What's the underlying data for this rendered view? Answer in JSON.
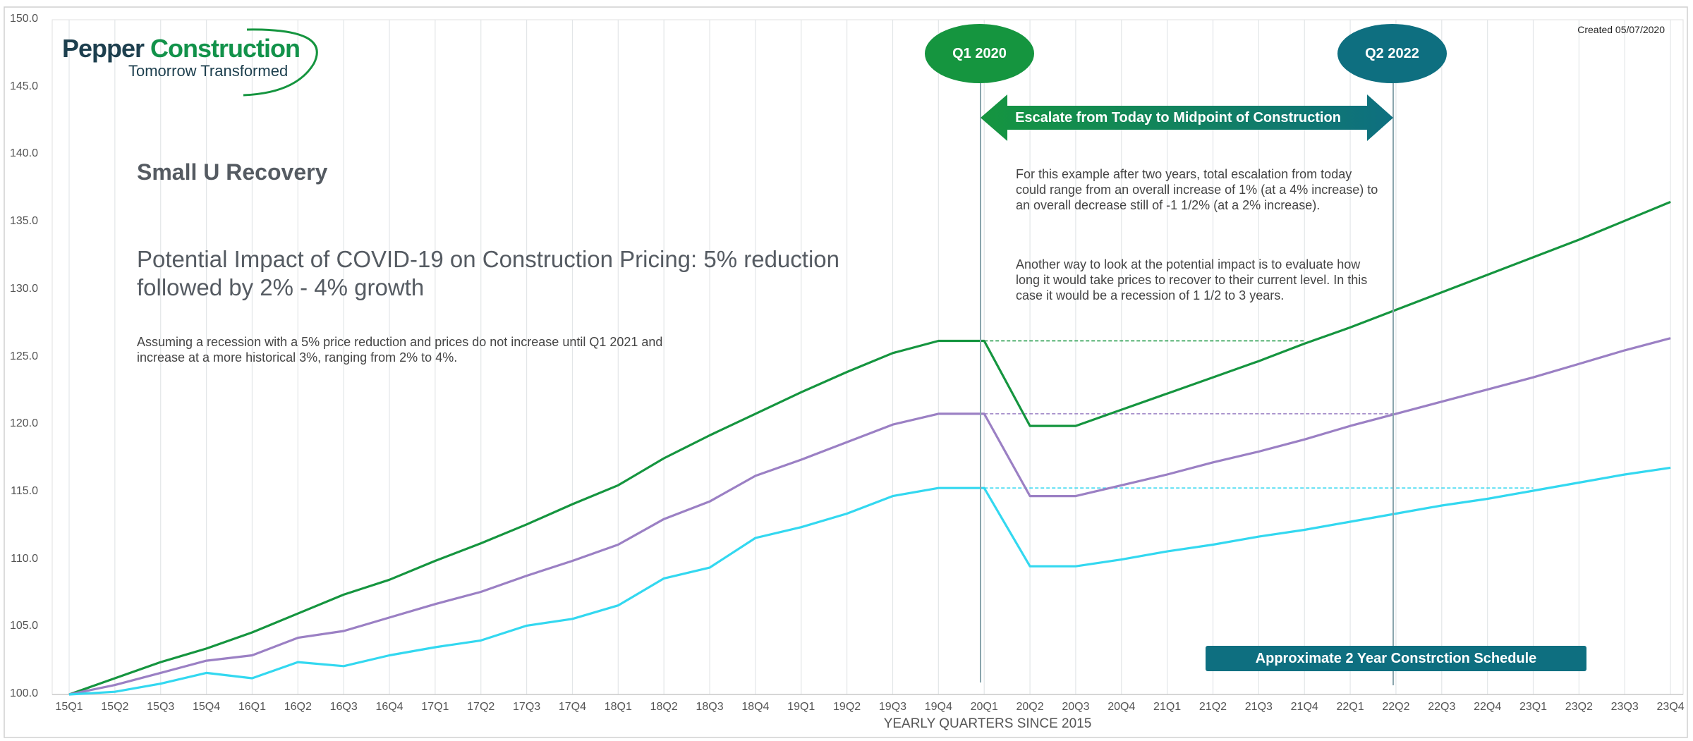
{
  "logo": {
    "name_part1": "Pepper ",
    "name_part2": "Construction",
    "tagline": "Tomorrow Transformed"
  },
  "created": "Created 05/07/2020",
  "title": "Small U Recovery",
  "subtitle": "Potential Impact of COVID-19 on Construction Pricing: 5% reduction followed by 2% - 4% growth",
  "description": "Assuming a recession with a 5% price reduction and prices do not increase until Q1 2021 and increase at a more historical 3%, ranging from 2% to 4%.",
  "note1": "For this example after two years, total escalation from today could range from an overall increase of 1% (at a 4% increase) to an overall decrease still of -1 1/2% (at a 2% increase).",
  "note2": "Another way to look at the potential impact is to evaluate how long it would take prices to recover to their current level.  In this case it would be a recession of 1 1/2 to 3 years.",
  "markers": {
    "q1": "Q1 2020",
    "q2": "Q2 2022"
  },
  "arrow_label": "Escalate from Today to Midpoint of Construction",
  "schedule_label": "Approximate 2 Year Constrction Schedule",
  "colors": {
    "green": "#15953f",
    "purple": "#9b80c4",
    "cyan": "#33d8f0",
    "teal": "#0e6f80"
  },
  "chart_data": {
    "type": "line",
    "xlabel": "YEARLY QUARTERS SINCE 2015",
    "ylabel": "",
    "ylim": [
      100,
      150
    ],
    "yticks": [
      "100.0",
      "105.0",
      "110.0",
      "115.0",
      "120.0",
      "125.0",
      "130.0",
      "135.0",
      "140.0",
      "145.0",
      "150.0"
    ],
    "categories": [
      "15Q1",
      "15Q2",
      "15Q3",
      "15Q4",
      "16Q1",
      "16Q2",
      "16Q3",
      "16Q4",
      "17Q1",
      "17Q2",
      "17Q3",
      "17Q4",
      "18Q1",
      "18Q2",
      "18Q3",
      "18Q4",
      "19Q1",
      "19Q2",
      "19Q3",
      "19Q4",
      "20Q1",
      "20Q2",
      "20Q3",
      "20Q4",
      "21Q1",
      "21Q2",
      "21Q3",
      "21Q4",
      "22Q1",
      "22Q2",
      "22Q3",
      "22Q4",
      "23Q1",
      "23Q2",
      "23Q3",
      "23Q4"
    ],
    "grid": "vertical",
    "series": [
      {
        "color": "#15953f",
        "values": [
          100.0,
          101.2,
          102.4,
          103.4,
          104.6,
          106.0,
          107.4,
          108.5,
          109.9,
          111.2,
          112.6,
          114.1,
          115.5,
          117.5,
          119.2,
          120.8,
          122.4,
          123.9,
          125.3,
          126.2,
          126.2,
          119.9,
          119.9,
          121.1,
          122.3,
          123.5,
          124.7,
          126.0,
          127.2,
          128.5,
          129.8,
          131.1,
          132.4,
          133.7,
          135.1,
          136.5
        ],
        "recovery_level": 126.2,
        "recovery_until": "21Q4"
      },
      {
        "color": "#9b80c4",
        "values": [
          100.0,
          100.7,
          101.6,
          102.5,
          102.9,
          104.2,
          104.7,
          105.7,
          106.7,
          107.6,
          108.8,
          109.9,
          111.1,
          113.0,
          114.3,
          116.2,
          117.4,
          118.7,
          120.0,
          120.8,
          120.8,
          114.7,
          114.7,
          115.5,
          116.3,
          117.2,
          118.0,
          118.9,
          119.9,
          120.8,
          121.7,
          122.6,
          123.5,
          124.5,
          125.5,
          126.4
        ],
        "recovery_level": 120.8,
        "recovery_until": "22Q2"
      },
      {
        "color": "#33d8f0",
        "values": [
          100.0,
          100.2,
          100.8,
          101.6,
          101.2,
          102.4,
          102.1,
          102.9,
          103.5,
          104.0,
          105.1,
          105.6,
          106.6,
          108.6,
          109.4,
          111.6,
          112.4,
          113.4,
          114.7,
          115.3,
          115.3,
          109.5,
          109.5,
          110.0,
          110.6,
          111.1,
          111.7,
          112.2,
          112.8,
          113.4,
          114.0,
          114.5,
          115.1,
          115.7,
          116.3,
          116.8
        ],
        "recovery_level": 115.3,
        "recovery_until": "23Q1"
      }
    ],
    "annotations": [
      "Q1 2020",
      "Q2 2022",
      "Escalate from Today to Midpoint of Construction",
      "Approximate 2 Year Constrction Schedule"
    ]
  }
}
